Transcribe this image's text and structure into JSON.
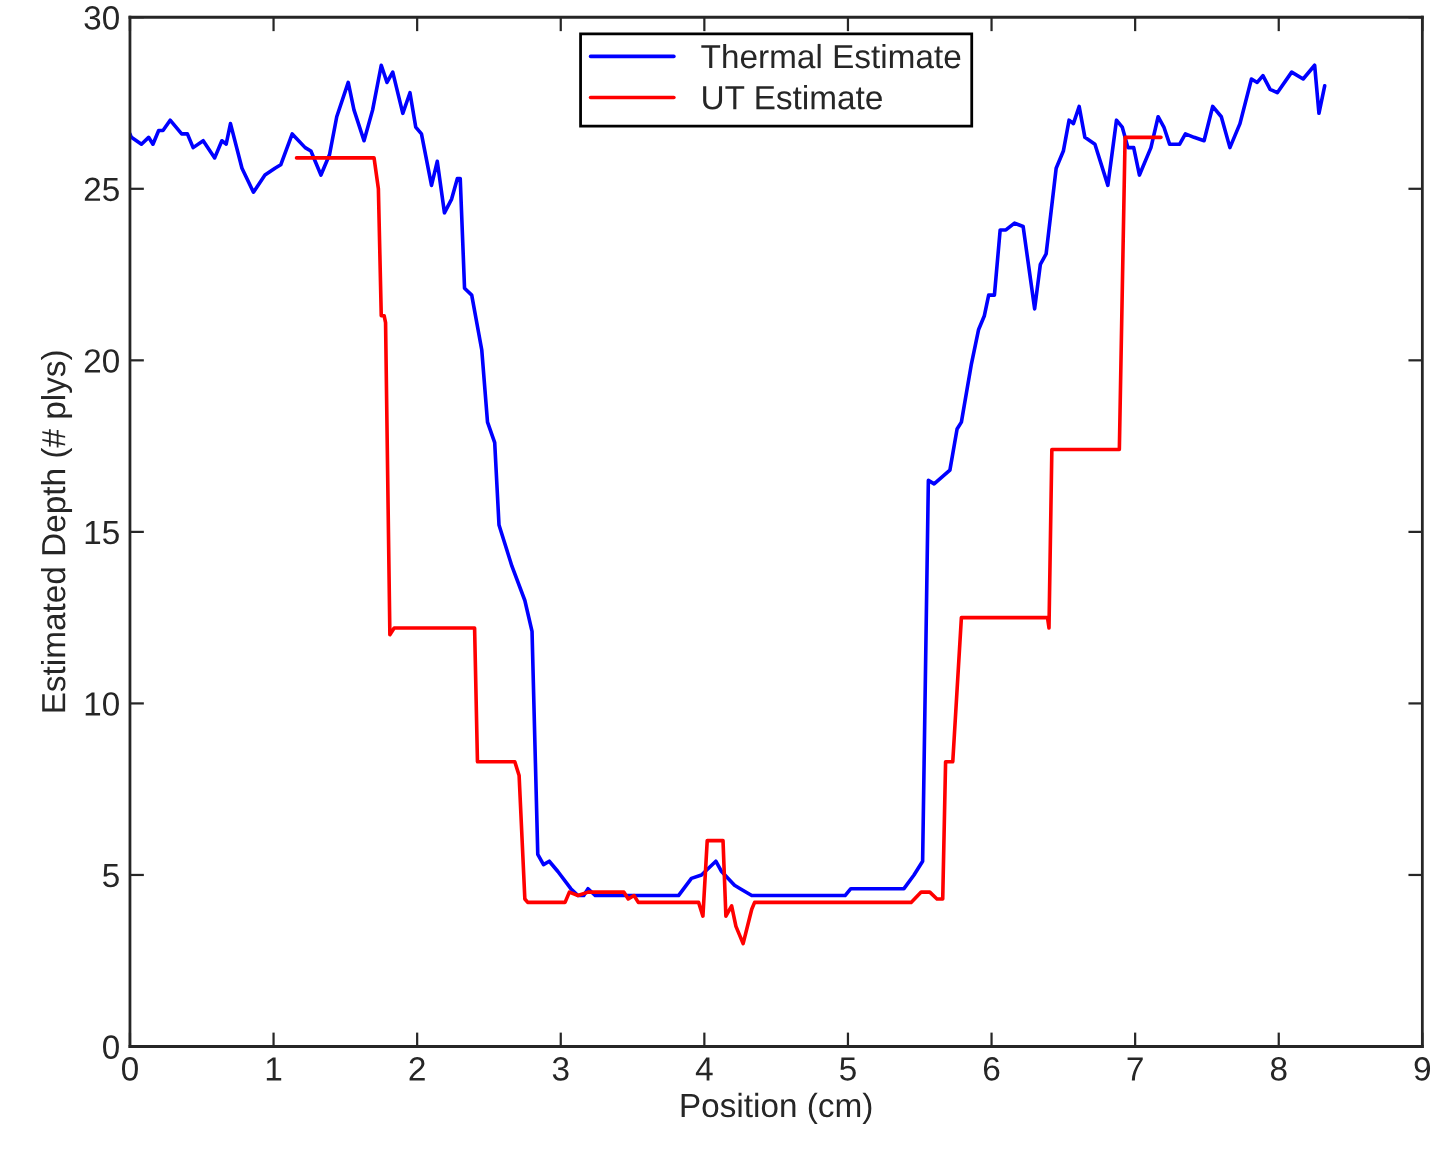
{
  "chart_data": {
    "type": "line",
    "xlabel": "Position (cm)",
    "ylabel": "Estimated Depth (# plys)",
    "xlim": [
      0,
      9
    ],
    "ylim": [
      0,
      30
    ],
    "xticks": [
      0,
      1,
      2,
      3,
      4,
      5,
      6,
      7,
      8,
      9
    ],
    "yticks": [
      0,
      5,
      10,
      15,
      20,
      25,
      30
    ],
    "legend": "top",
    "grid": false,
    "marker": "none",
    "line_style": "solid",
    "series": [
      {
        "name": "Thermal Estimate",
        "color": "#0000ff",
        "x": [
          0,
          0.01,
          0.08,
          0.13,
          0.16,
          0.2,
          0.23,
          0.28,
          0.36,
          0.4,
          0.44,
          0.51,
          0.59,
          0.64,
          0.67,
          0.7,
          0.78,
          0.86,
          0.94,
          1.01,
          1.05,
          1.13,
          1.22,
          1.26,
          1.33,
          1.39,
          1.44,
          1.52,
          1.56,
          1.63,
          1.69,
          1.75,
          1.79,
          1.83,
          1.9,
          1.95,
          1.99,
          2.03,
          2.1,
          2.14,
          2.19,
          2.24,
          2.28,
          2.3,
          2.33,
          2.38,
          2.45,
          2.49,
          2.54,
          2.57,
          2.66,
          2.75,
          2.8,
          2.84,
          2.88,
          2.92,
          2.98,
          3.07,
          3.12,
          3.16,
          3.19,
          3.24,
          3.82,
          3.91,
          3.98,
          4.08,
          4.12,
          4.21,
          4.25,
          4.33,
          4.98,
          5.02,
          5.39,
          5.46,
          5.52,
          5.56,
          5.6,
          5.71,
          5.76,
          5.79,
          5.86,
          5.91,
          5.95,
          5.98,
          6.02,
          6.06,
          6.1,
          6.16,
          6.22,
          6.3,
          6.34,
          6.38,
          6.45,
          6.5,
          6.54,
          6.57,
          6.61,
          6.65,
          6.72,
          6.81,
          6.87,
          6.91,
          6.95,
          6.99,
          7.03,
          7.11,
          7.16,
          7.2,
          7.24,
          7.31,
          7.35,
          7.41,
          7.48,
          7.54,
          7.6,
          7.66,
          7.73,
          7.81,
          7.85,
          7.89,
          7.94,
          7.99,
          8.09,
          8.17,
          8.25,
          8.28,
          8.32
        ],
        "values": [
          26.6,
          26.5,
          26.3,
          26.5,
          26.3,
          26.7,
          26.7,
          27.0,
          26.6,
          26.6,
          26.2,
          26.4,
          25.9,
          26.4,
          26.3,
          26.9,
          25.6,
          24.9,
          25.4,
          25.6,
          25.7,
          26.6,
          26.2,
          26.1,
          25.4,
          26.0,
          27.1,
          28.1,
          27.3,
          26.4,
          27.3,
          28.6,
          28.1,
          28.4,
          27.2,
          27.8,
          26.8,
          26.6,
          25.1,
          25.8,
          24.3,
          24.7,
          25.3,
          25.3,
          22.1,
          21.9,
          20.3,
          18.2,
          17.6,
          15.2,
          14.0,
          13.0,
          12.1,
          5.6,
          5.3,
          5.4,
          5.1,
          4.6,
          4.4,
          4.4,
          4.6,
          4.4,
          4.4,
          4.9,
          5.0,
          5.4,
          5.1,
          4.7,
          4.6,
          4.4,
          4.4,
          4.6,
          4.6,
          5.0,
          5.4,
          16.5,
          16.4,
          16.8,
          18.0,
          18.2,
          19.9,
          20.9,
          21.3,
          21.9,
          21.9,
          23.8,
          23.8,
          24.0,
          23.9,
          21.5,
          22.8,
          23.1,
          25.6,
          26.1,
          27.0,
          26.9,
          27.4,
          26.5,
          26.3,
          25.1,
          27.0,
          26.8,
          26.2,
          26.2,
          25.4,
          26.2,
          27.1,
          26.8,
          26.3,
          26.3,
          26.6,
          26.5,
          26.4,
          27.4,
          27.1,
          26.2,
          26.9,
          28.2,
          28.1,
          28.3,
          27.9,
          27.8,
          28.4,
          28.2,
          28.6,
          27.2,
          28.0
        ]
      },
      {
        "name": "UT Estimate",
        "color": "#ff0000",
        "x": [
          1.16,
          1.7,
          1.73,
          1.75,
          1.77,
          1.78,
          1.81,
          1.84,
          2.4,
          2.42,
          2.68,
          2.71,
          2.75,
          2.77,
          3.03,
          3.06,
          3.12,
          3.19,
          3.44,
          3.47,
          3.51,
          3.54,
          3.96,
          3.99,
          4.02,
          4.13,
          4.15,
          4.19,
          4.22,
          4.27,
          4.33,
          4.35,
          5.44,
          5.51,
          5.57,
          5.62,
          5.66,
          5.68,
          5.73,
          5.79,
          6.39,
          6.4,
          6.42,
          6.89,
          6.93,
          7.18
        ],
        "values": [
          25.9,
          25.9,
          25.0,
          21.3,
          21.3,
          21.1,
          12.0,
          12.2,
          12.2,
          8.3,
          8.3,
          7.9,
          4.3,
          4.2,
          4.2,
          4.5,
          4.4,
          4.5,
          4.5,
          4.3,
          4.4,
          4.2,
          4.2,
          3.8,
          6.0,
          6.0,
          3.8,
          4.1,
          3.5,
          3.0,
          4.0,
          4.2,
          4.2,
          4.5,
          4.5,
          4.3,
          4.3,
          8.3,
          8.3,
          12.5,
          12.5,
          12.2,
          17.4,
          17.4,
          26.5,
          26.5
        ]
      }
    ]
  }
}
